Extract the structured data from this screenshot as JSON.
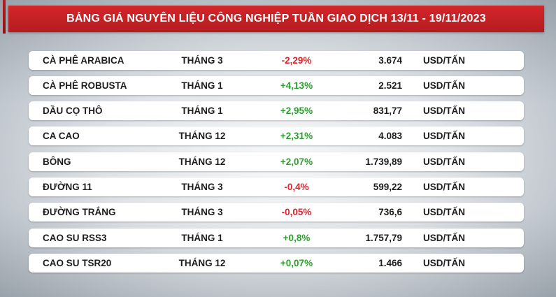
{
  "header": {
    "title": "BẢNG GIÁ NGUYÊN LIỆU CÔNG NGHIỆP TUẦN GIAO DỊCH 13/11 - 19/11/2023"
  },
  "colors": {
    "header_red": "#c8232a",
    "positive": "#2e9e2e",
    "negative": "#e0222a"
  },
  "rows": [
    {
      "name": "CÀ PHÊ ARABICA",
      "month": "THÁNG 3",
      "change": "-2,29%",
      "price": "3.674",
      "unit": "USD/TẤN"
    },
    {
      "name": "CÀ PHÊ ROBUSTA",
      "month": "THÁNG 1",
      "change": "+4,13%",
      "price": "2.521",
      "unit": "USD/TẤN"
    },
    {
      "name": "DẦU CỌ THÔ",
      "month": "THÁNG 1",
      "change": "+2,95%",
      "price": "831,77",
      "unit": "USD/TẤN"
    },
    {
      "name": "CA CAO",
      "month": "THÁNG 12",
      "change": "+2,31%",
      "price": "4.083",
      "unit": "USD/TẤN"
    },
    {
      "name": "BÔNG",
      "month": "THÁNG 12",
      "change": "+2,07%",
      "price": "1.739,89",
      "unit": "USD/TẤN"
    },
    {
      "name": "ĐƯỜNG 11",
      "month": "THÁNG 3",
      "change": "-0,4%",
      "price": "599,22",
      "unit": "USD/TẤN"
    },
    {
      "name": "ĐƯỜNG TRẮNG",
      "month": "THÁNG 3",
      "change": "-0,05%",
      "price": "736,6",
      "unit": "USD/TẤN"
    },
    {
      "name": "CAO SU RSS3",
      "month": "THÁNG 1",
      "change": "+0,8%",
      "price": "1.757,79",
      "unit": "USD/TẤN"
    },
    {
      "name": "CAO SU TSR20",
      "month": "THÁNG 12",
      "change": "+0,07%",
      "price": "1.466",
      "unit": "USD/TẤN"
    }
  ]
}
